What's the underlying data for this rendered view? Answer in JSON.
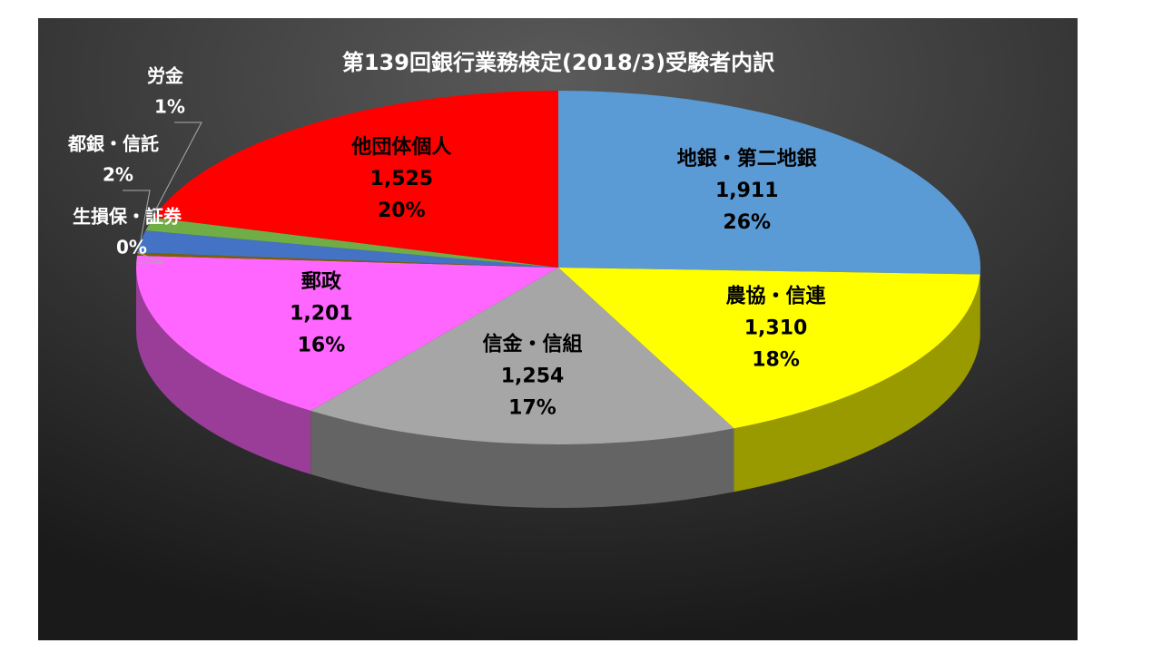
{
  "chart_data": {
    "type": "pie3d",
    "title": "第139回銀行業務検定(2018/3)受験者内訳",
    "categories": [
      "地銀・第二地銀",
      "農協・信連",
      "信金・信組",
      "郵政",
      "生損保・証券",
      "都銀・信託",
      "労金",
      "他団体個人"
    ],
    "values": [
      1911,
      1310,
      1254,
      1201,
      20,
      150,
      90,
      1525
    ],
    "value_labels": [
      "1,911",
      "1,310",
      "1,254",
      "1,201",
      null,
      null,
      null,
      "1,525"
    ],
    "percent_labels": [
      "26%",
      "18%",
      "17%",
      "16%",
      "0%",
      "2%",
      "1%",
      "20%"
    ],
    "colors": [
      "#5b9bd5",
      "#ffff00",
      "#a6a6a6",
      "#ff66ff",
      "#7f6000",
      "#4472c4",
      "#70ad47",
      "#ff0000"
    ]
  }
}
